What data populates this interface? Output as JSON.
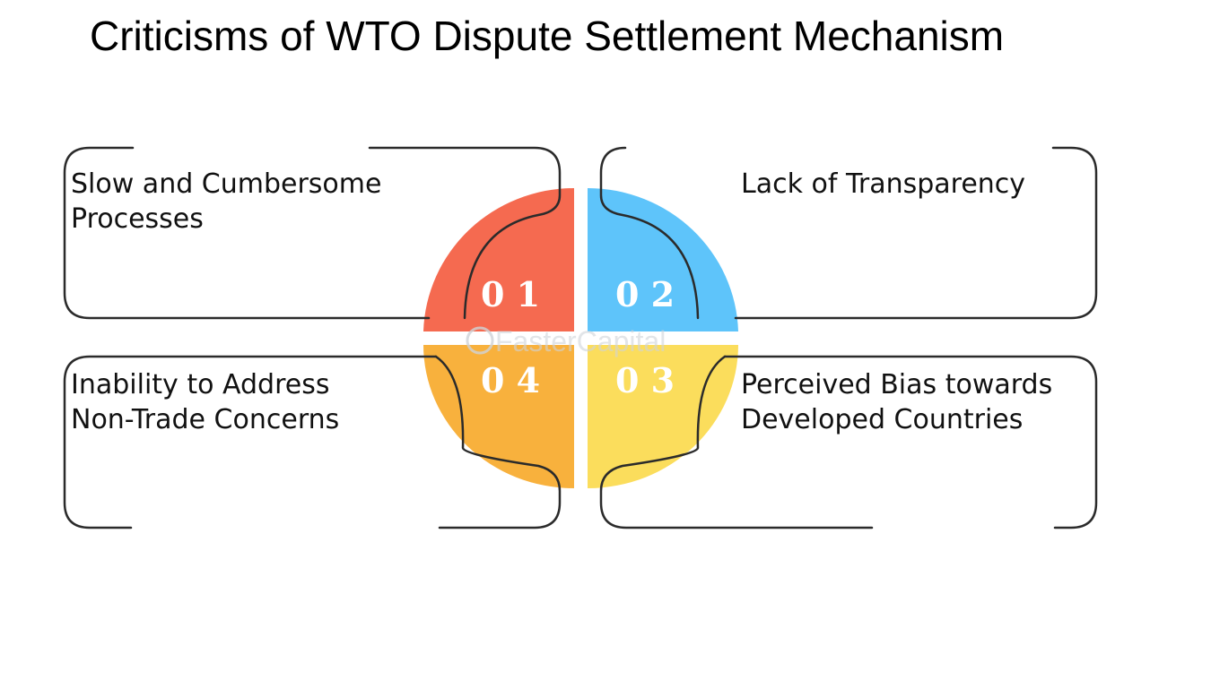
{
  "title": "Criticisms of WTO Dispute Settlement Mechanism",
  "items": [
    {
      "number": "0 1",
      "lines": [
        "Slow and Cumbersome",
        "Processes"
      ],
      "color": "#f56a50"
    },
    {
      "number": "0 2",
      "lines": [
        "Lack of Transparency"
      ],
      "color": "#5ec4fa"
    },
    {
      "number": "0 3",
      "lines": [
        "Perceived Bias towards",
        "Developed Countries"
      ],
      "color": "#fbdd5c"
    },
    {
      "number": "0 4",
      "lines": [
        "Inability to Address",
        "Non-Trade Concerns"
      ],
      "color": "#f8b13d"
    }
  ],
  "watermark": "FasterCapital"
}
